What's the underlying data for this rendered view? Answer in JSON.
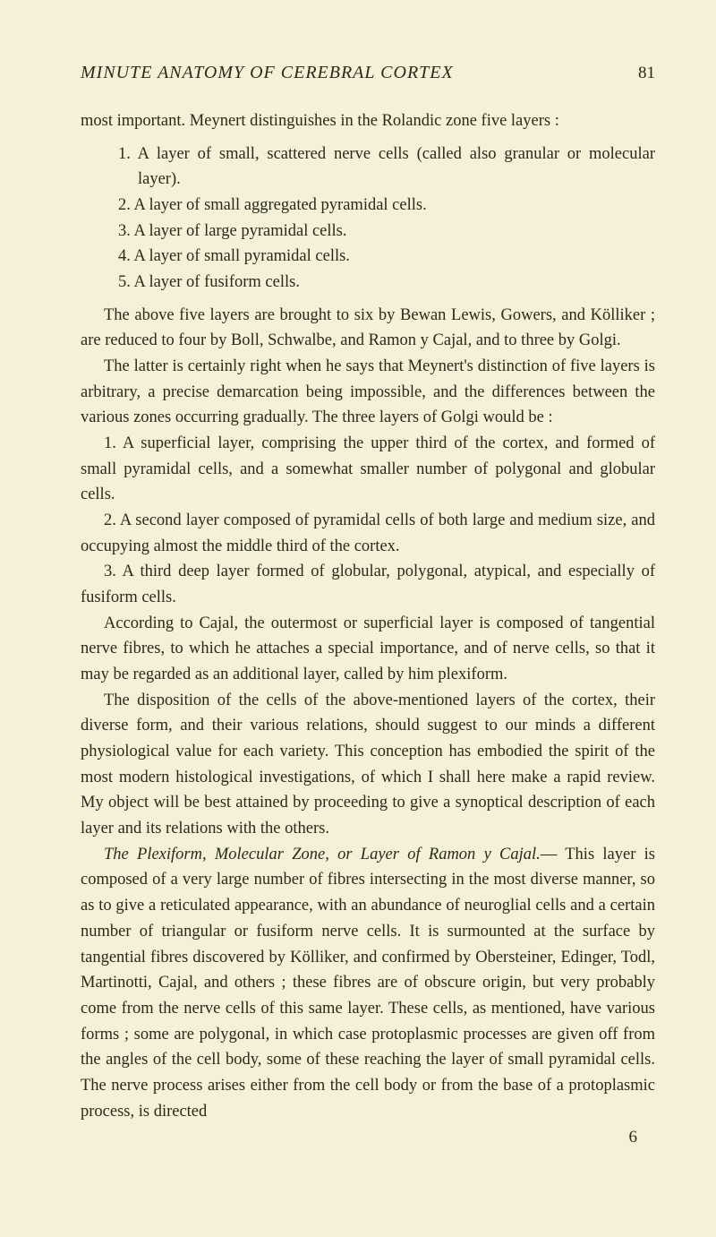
{
  "page": {
    "header_title": "MINUTE ANATOMY OF CEREBRAL CORTEX",
    "page_number": "81",
    "footer_number": "6",
    "background_color": "#f5f0d8",
    "text_color": "#2a2a1a",
    "body_fontsize": 18.5,
    "header_fontsize": 20
  },
  "intro": "most important.   Meynert distinguishes in the Rolandic zone five layers :",
  "list1": {
    "items": [
      "1. A layer of small, scattered nerve cells (called also granular or molecular layer).",
      "2. A layer of small aggregated pyramidal cells.",
      "3. A layer of large pyramidal cells.",
      "4. A layer of small pyramidal cells.",
      "5. A layer of fusiform cells."
    ]
  },
  "para2": "The above five layers are brought to six by Bewan Lewis, Gowers, and Kölliker ; are reduced to four by Boll, Schwalbe, and Ramon y Cajal, and to three by Golgi.",
  "para3": "The latter is certainly right when he says that Meynert's distinction of five layers is arbitrary, a precise demarcation being impossible, and the differences between the various zones occurring gradually. The three layers of Golgi would be :",
  "para4": "1. A superficial layer, comprising the upper third of the cortex, and formed of small pyramidal cells, and a somewhat smaller number of polygonal and globular cells.",
  "para5": "2. A second layer composed of pyramidal cells of both large and medium size, and occupying almost the middle third of the cortex.",
  "para6": "3. A third deep layer formed of globular, polygonal, atypical, and especially of fusiform cells.",
  "para7": "According to Cajal, the outermost or superficial layer is composed of tangential nerve fibres, to which he attaches a special importance, and of nerve cells, so that it may be regarded as an additional layer, called by him plexiform.",
  "para8": "The disposition of the cells of the above-mentioned layers of the cortex, their diverse form, and their various relations, should suggest to our minds a different physiological value for each variety.   This conception has embodied the spirit of the most modern histological investigations, of which I shall here make a rapid review.   My object will be best attained by proceeding to give a synoptical description of each layer and its relations with the others.",
  "para9_italic": "The Plexiform, Molecular Zone, or Layer of Ramon y Cajal.",
  "para9_rest": "— This layer is composed of a very large number of fibres intersecting in the most diverse manner, so as to give a reticulated appearance, with an abundance of neuroglial cells and a certain number of triangular or fusiform nerve cells.   It is surmounted at the surface by tangential fibres discovered by Kölliker, and confirmed by Obersteiner, Edinger, Todl, Martinotti, Cajal, and others ; these fibres are of obscure origin, but very probably come from the nerve cells of this same layer.   These cells, as mentioned, have various forms ; some are polygonal, in which case protoplasmic processes are given off from the angles of the cell body, some of these reaching the layer of small pyramidal cells.   The nerve process arises either from the cell body or from the base of a protoplasmic process, is directed"
}
